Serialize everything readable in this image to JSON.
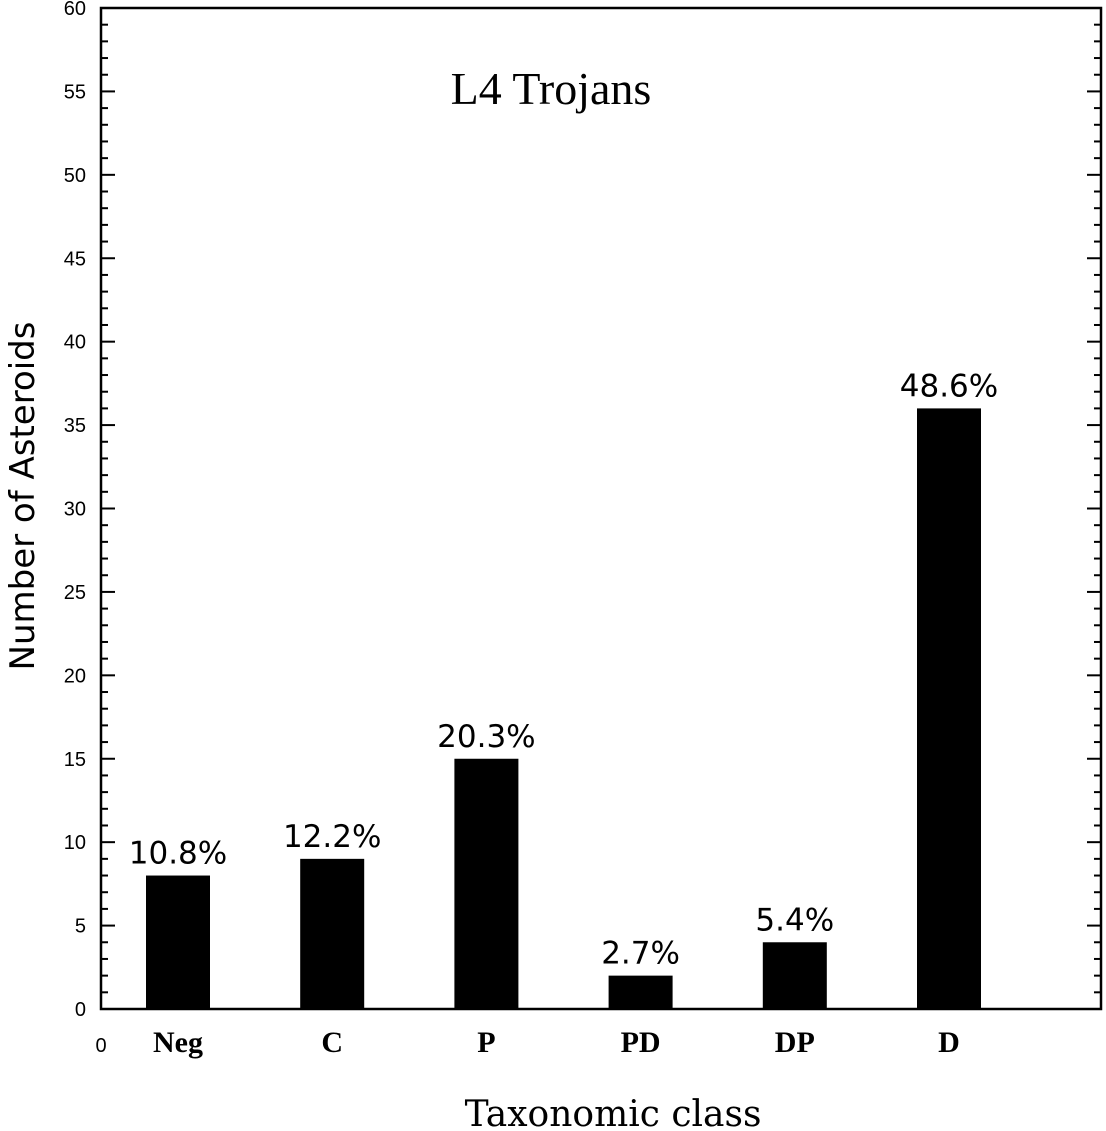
{
  "chart_data": {
    "type": "bar",
    "title": "L4 Trojans",
    "xlabel": "Taxonomic class",
    "ylabel": "Number of Asteroids",
    "x_origin_label": "0",
    "categories": [
      "Neg",
      "C",
      "P",
      "PD",
      "DP",
      "D"
    ],
    "values": [
      8,
      9,
      15,
      2,
      4,
      36
    ],
    "percent_labels": [
      "10.8%",
      "12.2%",
      "20.3%",
      "2.7%",
      "5.4%",
      "48.6%"
    ],
    "ylim": [
      0,
      60
    ],
    "y_major_step": 5,
    "y_minor_step": 1,
    "grid": false,
    "bar_color": "#000000"
  }
}
